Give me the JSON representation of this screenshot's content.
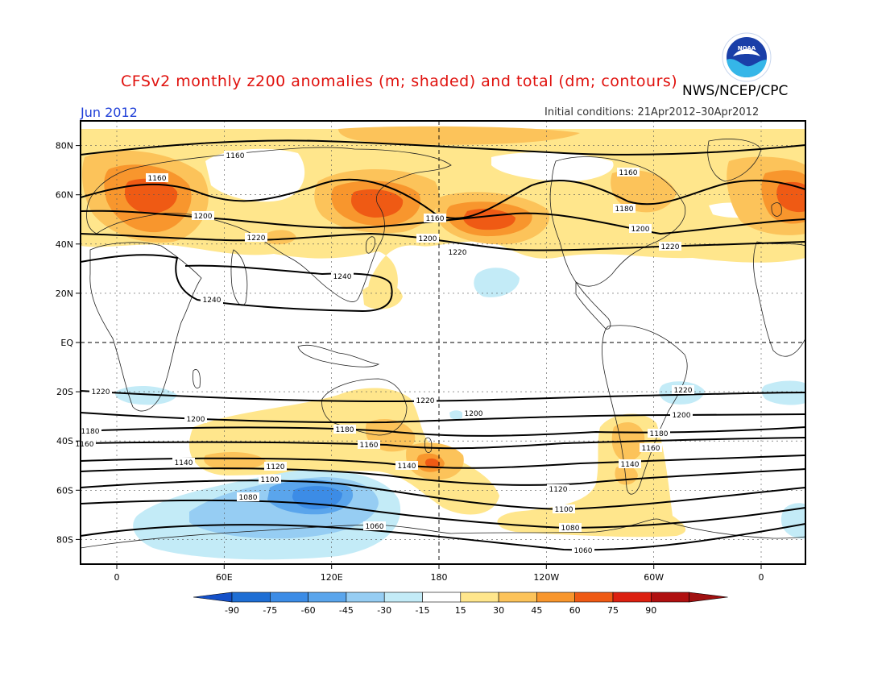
{
  "title": "CFSv2 monthly z200 anomalies (m; shaded) and total (dm; contours)",
  "agency": "NWS/NCEP/CPC",
  "logo_text": "NOAA",
  "month_label": "Jun 2012",
  "initial_conditions": "Initial conditions: 21Apr2012–30Apr2012",
  "lat_labels": [
    "80N",
    "60N",
    "40N",
    "20N",
    "EQ",
    "20S",
    "40S",
    "60S",
    "80S"
  ],
  "lon_labels": [
    "0",
    "60E",
    "120E",
    "180",
    "120W",
    "60W",
    "0"
  ],
  "colorbar": {
    "labels": [
      "-90",
      "-75",
      "-60",
      "-45",
      "-30",
      "-15",
      "15",
      "30",
      "45",
      "60",
      "75",
      "90"
    ],
    "colors": [
      "#1e6ed4",
      "#3c8ce6",
      "#5aa5ec",
      "#96cdf3",
      "#c3ebf7",
      "#ffffff",
      "#ffe68c",
      "#fcc35a",
      "#f8962d",
      "#ef5a14",
      "#dc2010",
      "#b01010"
    ],
    "end_colors": [
      "#1450c8",
      "#a01010"
    ]
  },
  "contour_labels": [
    "1160",
    "1160",
    "1200",
    "1220",
    "1240",
    "1240",
    "1160",
    "1200",
    "1220",
    "1160",
    "1180",
    "1200",
    "1220",
    "1220",
    "1200",
    "1180",
    "1160",
    "1140",
    "1120",
    "1100",
    "1080",
    "1060",
    "1220",
    "1200",
    "1180",
    "1160",
    "1140",
    "1120",
    "1100",
    "1080",
    "1060",
    "1220",
    "1200",
    "1180",
    "1160",
    "1140"
  ],
  "colors": {
    "title": "#e0110d",
    "month": "#1f3fd8",
    "contour": "#000000",
    "map_frame": "#000000"
  }
}
